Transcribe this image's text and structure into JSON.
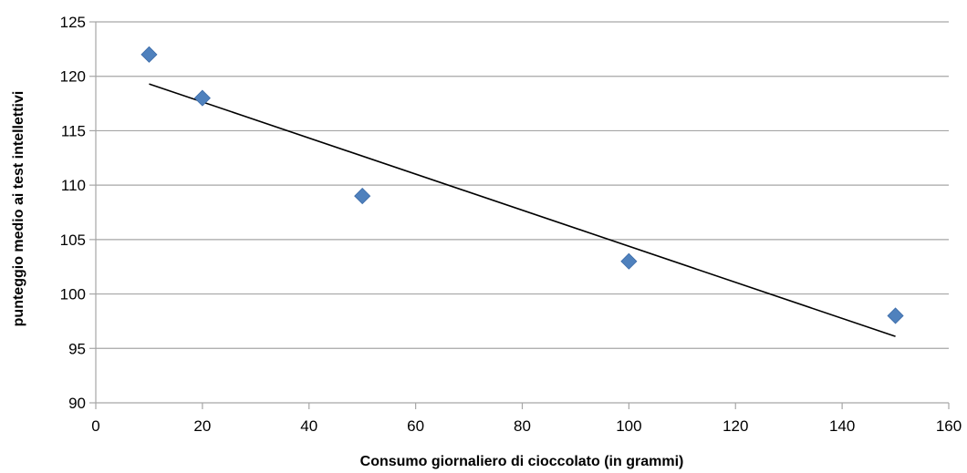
{
  "chart_data": {
    "type": "scatter",
    "title": "",
    "xlabel": "Consumo giornaliero di cioccolato (in grammi)",
    "ylabel": "punteggio medio ai test intellettivi",
    "xlim": [
      0,
      160
    ],
    "ylim": [
      90,
      125
    ],
    "x_ticks": [
      0,
      20,
      40,
      60,
      80,
      100,
      120,
      140,
      160
    ],
    "y_ticks": [
      90,
      95,
      100,
      105,
      110,
      115,
      120,
      125
    ],
    "grid": "horizontal",
    "legend": "none",
    "series": [
      {
        "marker": "diamond",
        "color": "#4F81BD",
        "x": [
          10,
          20,
          50,
          100,
          150
        ],
        "y": [
          122,
          118,
          109,
          103,
          98
        ]
      }
    ],
    "trendline": {
      "type": "linear",
      "color": "#000000",
      "x": [
        10,
        150
      ],
      "y": [
        119.3,
        96.1
      ]
    },
    "colors": {
      "gridline": "#A6A6A6",
      "axis": "#A6A6A6"
    }
  }
}
